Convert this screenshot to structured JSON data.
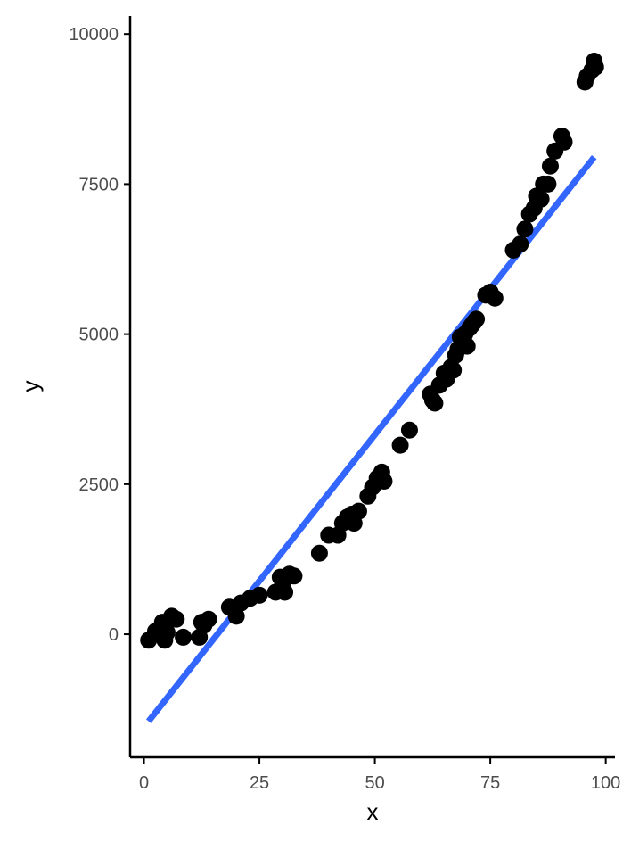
{
  "chart_data": {
    "type": "scatter",
    "title": "",
    "xlabel": "x",
    "ylabel": "y",
    "xlim": [
      -3,
      102
    ],
    "ylim": [
      -2050,
      10300
    ],
    "xticks": [
      0,
      25,
      50,
      75,
      100
    ],
    "yticks": [
      0,
      2500,
      5000,
      7500,
      10000
    ],
    "xtick_labels": [
      "0",
      "25",
      "50",
      "75",
      "100"
    ],
    "ytick_labels": [
      "0",
      "2500",
      "5000",
      "7500",
      "10000"
    ],
    "grid": false,
    "legend": "none",
    "colors": {
      "points": "#000000",
      "fit_line": "#3366FF",
      "axis": "#000000",
      "tick_text": "#4d4d4d"
    },
    "fit_line": {
      "type": "linear",
      "x": [
        1,
        97.5
      ],
      "y": [
        -1450,
        7950
      ]
    },
    "points": {
      "x": [
        1,
        2.5,
        4,
        4.5,
        5,
        6,
        7,
        8.5,
        12,
        12.5,
        13,
        14,
        18.5,
        20,
        21,
        23,
        25,
        28.5,
        29.5,
        30,
        30.5,
        31.5,
        32.5,
        38,
        40,
        42,
        43,
        44,
        45,
        45.5,
        46.5,
        48.5,
        49.5,
        50.5,
        51.5,
        52,
        55.5,
        57.5,
        62,
        62.5,
        63,
        64,
        65,
        65.5,
        66.5,
        67,
        67.5,
        68,
        68.5,
        69.5,
        70,
        70.5,
        71,
        71.5,
        72,
        74,
        75,
        76,
        80,
        81.5,
        82.5,
        83.5,
        84.5,
        85,
        86,
        86.5,
        87.5,
        88,
        89,
        90.5,
        91,
        95.5,
        96,
        97,
        97.5,
        97.8
      ],
      "y": [
        -100,
        50,
        200,
        -100,
        30,
        300,
        250,
        -50,
        -50,
        200,
        150,
        250,
        450,
        300,
        520,
        600,
        650,
        700,
        950,
        820,
        700,
        1000,
        970,
        1350,
        1650,
        1650,
        1850,
        1950,
        2000,
        1850,
        2050,
        2300,
        2450,
        2600,
        2700,
        2550,
        3150,
        3400,
        4000,
        3900,
        3850,
        4150,
        4350,
        4250,
        4450,
        4400,
        4650,
        4750,
        4950,
        5000,
        4800,
        5100,
        5150,
        5200,
        5250,
        5650,
        5700,
        5600,
        6400,
        6500,
        6750,
        7000,
        7100,
        7300,
        7250,
        7500,
        7500,
        7800,
        8050,
        8300,
        8200,
        9200,
        9300,
        9400,
        9550,
        9450
      ]
    }
  }
}
